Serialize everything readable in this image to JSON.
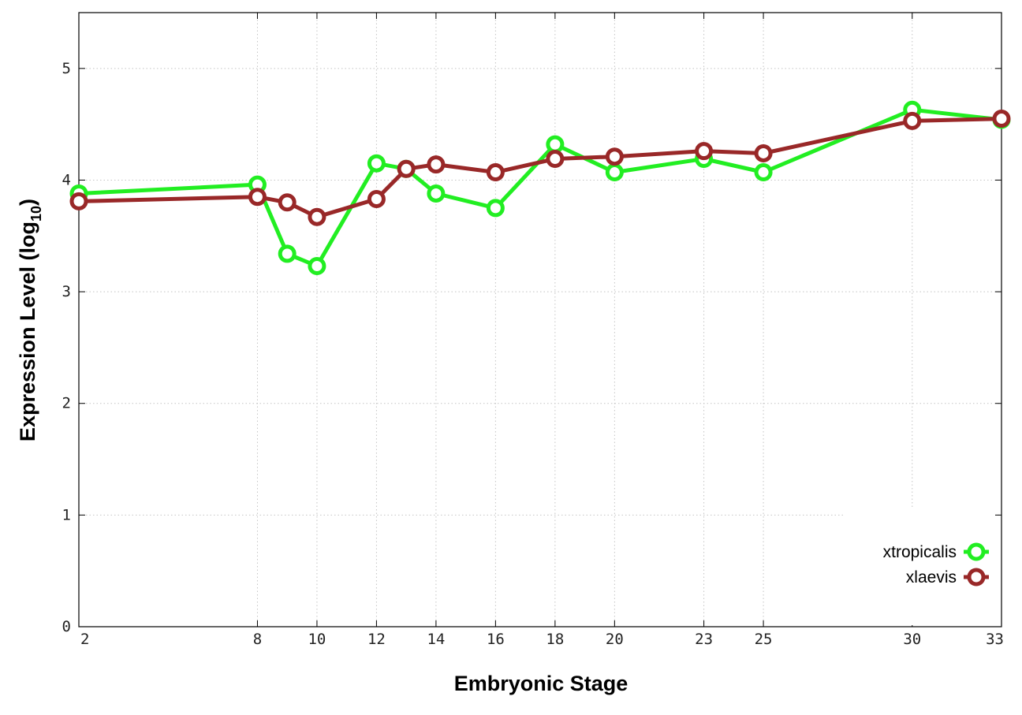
{
  "chart_data": {
    "type": "line",
    "xlabel": "Embryonic Stage",
    "ylabel_main": "Expression Level (log",
    "ylabel_sub": "10",
    "ylabel_close": ")",
    "xlim": [
      2,
      33
    ],
    "ylim": [
      0,
      5.5
    ],
    "x_ticks": [
      2,
      8,
      10,
      12,
      14,
      16,
      18,
      20,
      23,
      25,
      30,
      33
    ],
    "x_tick_labels": [
      "2",
      "8",
      "10",
      "12",
      "14",
      "16",
      "18",
      "20",
      "23",
      "25",
      "30",
      "33"
    ],
    "y_ticks": [
      0,
      1,
      2,
      3,
      4,
      5
    ],
    "y_tick_labels": [
      "0",
      "1",
      "2",
      "3",
      "4",
      "5"
    ],
    "grid": true,
    "legend_position": "bottom-right",
    "series": [
      {
        "name": "xtropicalis",
        "color": "#22ee22",
        "x": [
          2,
          8,
          9,
          10,
          12,
          13,
          14,
          16,
          18,
          20,
          23,
          25,
          30,
          33
        ],
        "y": [
          3.88,
          3.96,
          3.34,
          3.23,
          4.15,
          4.1,
          3.88,
          3.75,
          4.32,
          4.07,
          4.19,
          4.07,
          4.63,
          4.54
        ]
      },
      {
        "name": "xlaevis",
        "color": "#992828",
        "x": [
          2,
          8,
          9,
          10,
          12,
          13,
          14,
          16,
          18,
          20,
          23,
          25,
          30,
          33
        ],
        "y": [
          3.81,
          3.85,
          3.8,
          3.67,
          3.83,
          4.1,
          4.14,
          4.07,
          4.19,
          4.21,
          4.26,
          4.24,
          4.53,
          4.55
        ]
      }
    ]
  }
}
